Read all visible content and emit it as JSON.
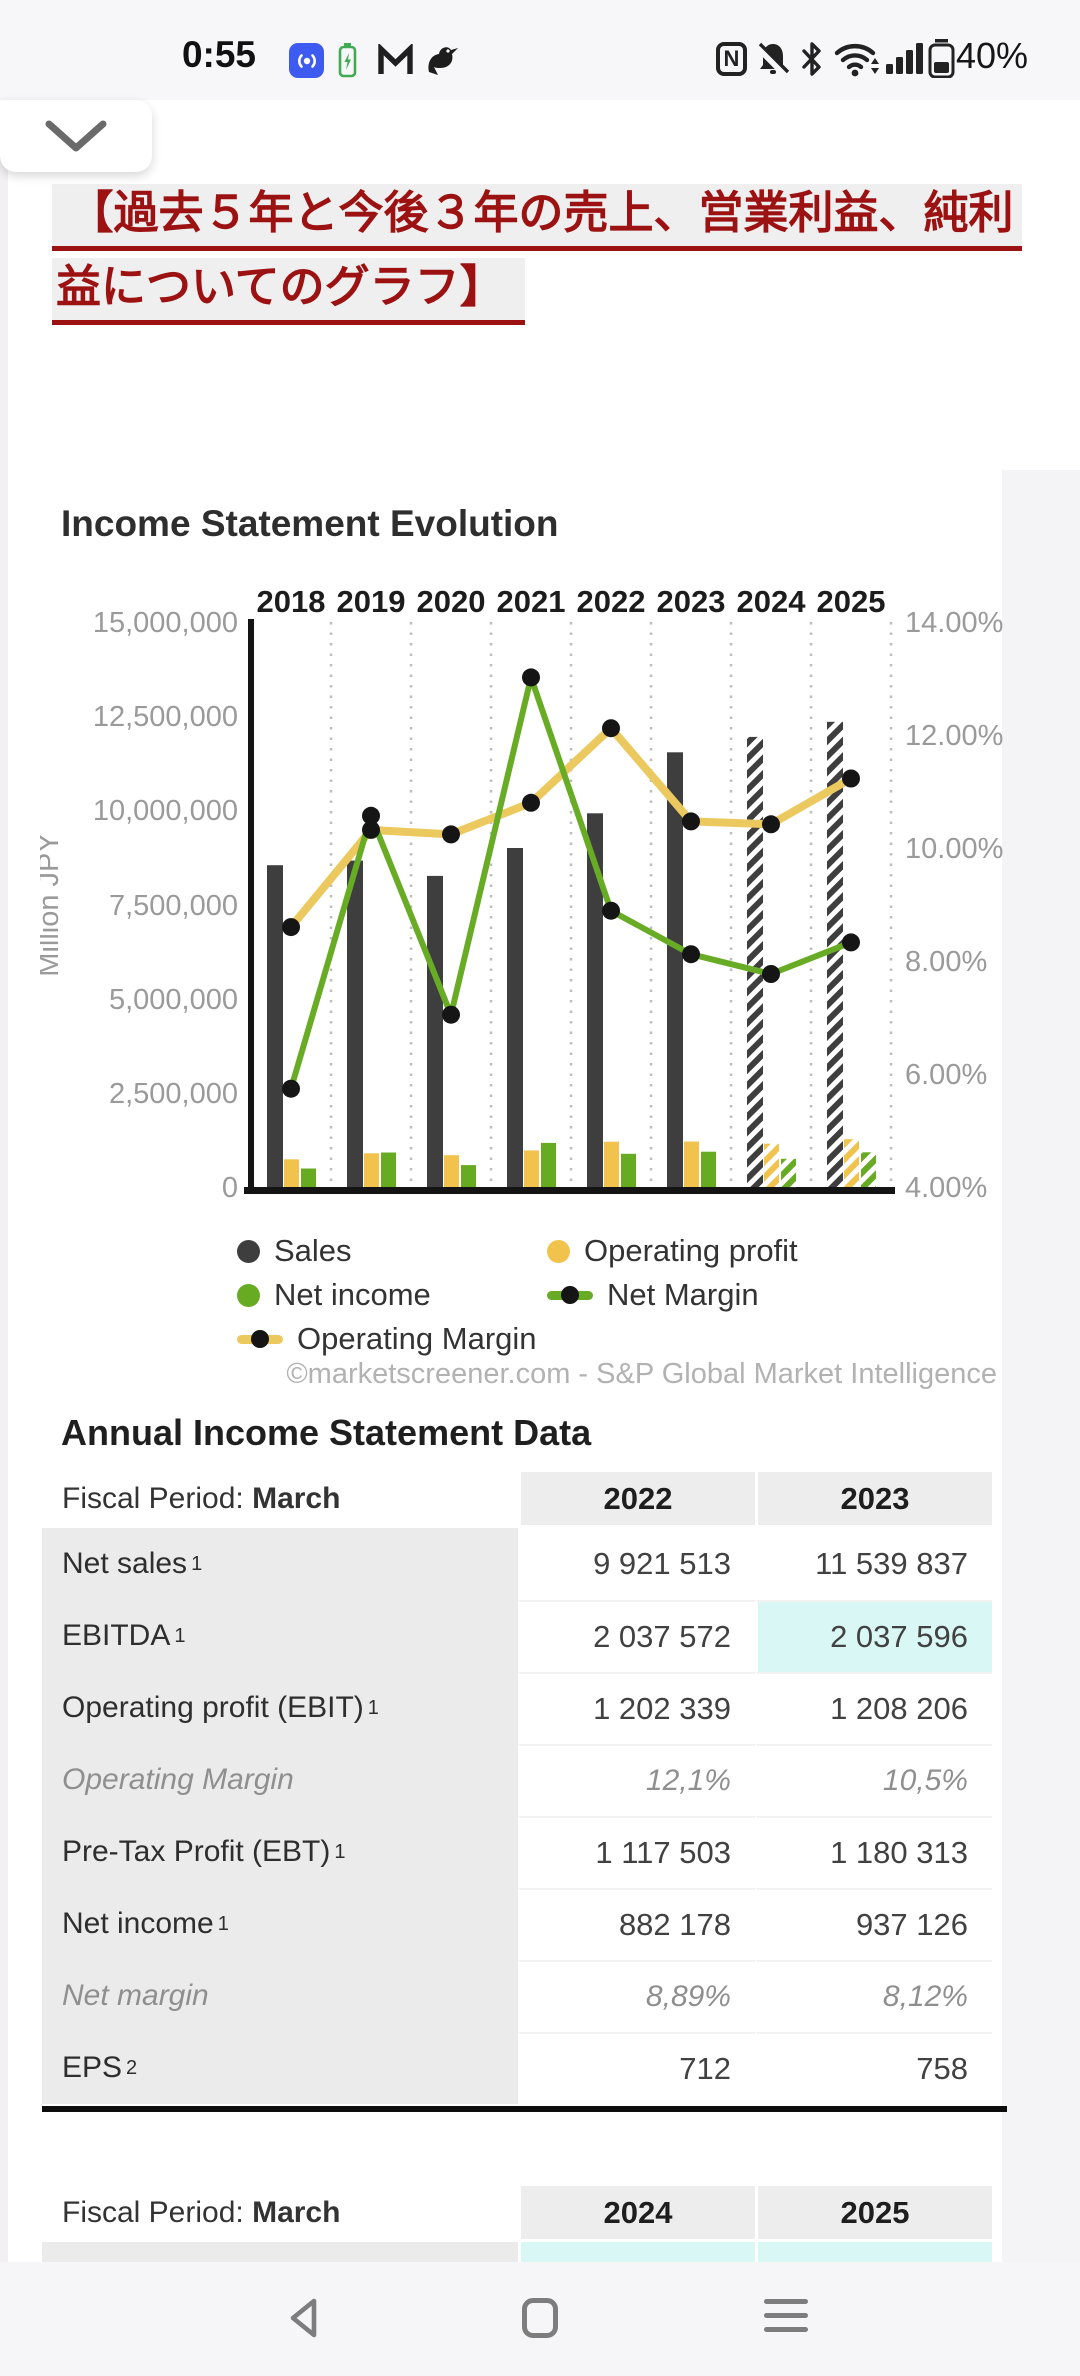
{
  "status_bar": {
    "time": "0:55",
    "battery_percent": "40%"
  },
  "heading": {
    "line1": " 【過去５年と今後３年の売上、営業利益、純利",
    "line2": "益についてのグラフ】 "
  },
  "chart_data": {
    "type": "combo-bar-line",
    "title": "Income Statement Evolution",
    "categories": [
      "2018",
      "2019",
      "2020",
      "2021",
      "2022",
      "2023",
      "2024",
      "2025"
    ],
    "left_axis": {
      "title": "Million JPY",
      "min": 0,
      "max": 15000000,
      "ticks": [
        "15,000,000",
        "12,500,000",
        "10,000,000",
        "7,500,000",
        "5,000,000",
        "2,500,000",
        "0"
      ]
    },
    "right_axis": {
      "min": 4,
      "max": 14,
      "ticks": [
        "14.00%",
        "12.00%",
        "10.00%",
        "8.00%",
        "6.00%",
        "4.00%"
      ]
    },
    "series": [
      {
        "name": "Sales",
        "type": "bar",
        "axis": "left",
        "color": "#3e3e3e",
        "forecast_from_index": 6,
        "values": [
          8544000,
          8666000,
          8260000,
          8999000,
          9921513,
          11539837,
          11950000,
          12350000
        ]
      },
      {
        "name": "Operating profit",
        "type": "bar",
        "axis": "left",
        "color": "#f1c34c",
        "forecast_from_index": 6,
        "values": [
          735000,
          894000,
          845000,
          972000,
          1202339,
          1208206,
          1150000,
          1270000
        ]
      },
      {
        "name": "Net income",
        "type": "bar",
        "axis": "left",
        "color": "#66ab22",
        "forecast_from_index": 6,
        "values": [
          491000,
          916000,
          582000,
          1172000,
          882178,
          937126,
          750000,
          920000
        ]
      },
      {
        "name": "Operating Margin",
        "type": "line",
        "axis": "right",
        "color": "#ecc95f",
        "values": [
          8.6,
          10.32,
          10.24,
          10.8,
          12.12,
          10.47,
          10.42,
          11.23
        ]
      },
      {
        "name": "Net Margin",
        "type": "line",
        "axis": "right",
        "color": "#68ac26",
        "values": [
          5.74,
          10.57,
          7.05,
          13.02,
          8.89,
          8.12,
          7.77,
          8.33
        ]
      }
    ],
    "legend": [
      {
        "label": "Sales",
        "swatch": "dot",
        "color": "#3e3e3e"
      },
      {
        "label": "Operating profit",
        "swatch": "dot",
        "color": "#f1c34c"
      },
      {
        "label": "Net income",
        "swatch": "dot",
        "color": "#66ab22"
      },
      {
        "label": "Net Margin",
        "swatch": "line-dot",
        "color": "#68ac26"
      },
      {
        "label": "Operating Margin",
        "swatch": "line-dot",
        "color": "#ecc95f"
      }
    ],
    "attribution": "©marketscreener.com - S&P Global Market Intelligence"
  },
  "tables_section": {
    "title": "Annual Income Statement Data",
    "tables": [
      {
        "fiscal_label": "Fiscal Period:",
        "fiscal_value": "March",
        "years": [
          "2022",
          "2023"
        ],
        "rows": [
          {
            "label": "Net sales",
            "sup": "1",
            "italic": false,
            "values": [
              "9 921 513",
              "11 539 837"
            ],
            "highlights": [
              false,
              false
            ]
          },
          {
            "label": "EBITDA",
            "sup": "1",
            "italic": false,
            "values": [
              "2 037 572",
              "2 037 596"
            ],
            "highlights": [
              false,
              true
            ]
          },
          {
            "label": "Operating profit (EBIT)",
            "sup": "1",
            "italic": false,
            "values": [
              "1 202 339",
              "1 208 206"
            ],
            "highlights": [
              false,
              false
            ]
          },
          {
            "label": "Operating Margin",
            "sup": null,
            "italic": true,
            "values": [
              "12,1%",
              "10,5%"
            ],
            "highlights": [
              false,
              false
            ]
          },
          {
            "label": "Pre-Tax Profit (EBT)",
            "sup": "1",
            "italic": false,
            "values": [
              "1 117 503",
              "1 180 313"
            ],
            "highlights": [
              false,
              false
            ]
          },
          {
            "label": "Net income",
            "sup": "1",
            "italic": false,
            "values": [
              "882 178",
              "937 126"
            ],
            "highlights": [
              false,
              false
            ]
          },
          {
            "label": "Net margin",
            "sup": null,
            "italic": true,
            "values": [
              "8,89%",
              "8,12%"
            ],
            "highlights": [
              false,
              false
            ]
          },
          {
            "label": "EPS",
            "sup": "2",
            "italic": false,
            "values": [
              "712",
              "758"
            ],
            "highlights": [
              false,
              false
            ]
          }
        ]
      },
      {
        "fiscal_label": "Fiscal Period:",
        "fiscal_value": "March",
        "years": [
          "2024",
          "2025"
        ],
        "rows": [
          {
            "label": "",
            "sup": null,
            "italic": false,
            "values": [
              "",
              ""
            ],
            "highlights": [
              true,
              true
            ]
          }
        ]
      }
    ]
  }
}
